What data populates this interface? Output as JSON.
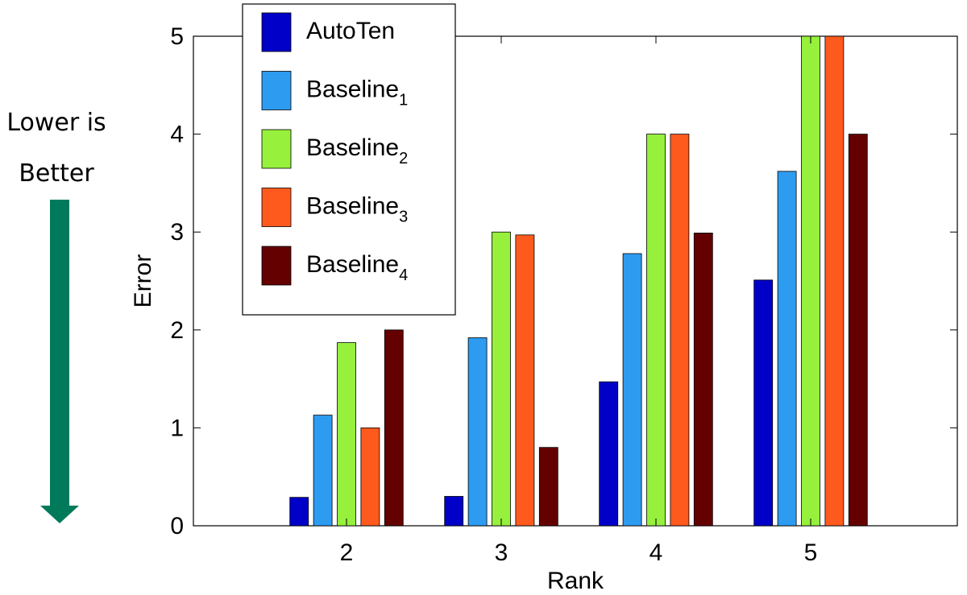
{
  "chart_data": {
    "type": "bar",
    "xlabel": "Rank",
    "ylabel": "Error",
    "categories": [
      "2",
      "3",
      "4",
      "5"
    ],
    "ylim": [
      0,
      5
    ],
    "yticks": [
      "0",
      "1",
      "2",
      "3",
      "4",
      "5"
    ],
    "grid": false,
    "legend_placement": "top-left",
    "series": [
      {
        "name": "AutoTen",
        "base": "AutoTen",
        "sub": "",
        "color": "#0000c8",
        "values": [
          0.29,
          0.3,
          1.47,
          2.51
        ]
      },
      {
        "name": "Baseline1",
        "base": "Baseline",
        "sub": "1",
        "color": "#2d9cf0",
        "values": [
          1.13,
          1.92,
          2.78,
          3.62
        ]
      },
      {
        "name": "Baseline2",
        "base": "Baseline",
        "sub": "2",
        "color": "#96f03c",
        "values": [
          1.87,
          3.0,
          4.0,
          5.0
        ]
      },
      {
        "name": "Baseline3",
        "base": "Baseline",
        "sub": "3",
        "color": "#ff5a1e",
        "values": [
          1.0,
          2.97,
          4.0,
          5.0
        ]
      },
      {
        "name": "Baseline4",
        "base": "Baseline",
        "sub": "4",
        "color": "#640000",
        "values": [
          2.0,
          0.8,
          2.99,
          4.0
        ]
      }
    ]
  },
  "annotation": {
    "line1": "Lower is",
    "line2": "Better",
    "arrow_color": "#007a5a"
  }
}
